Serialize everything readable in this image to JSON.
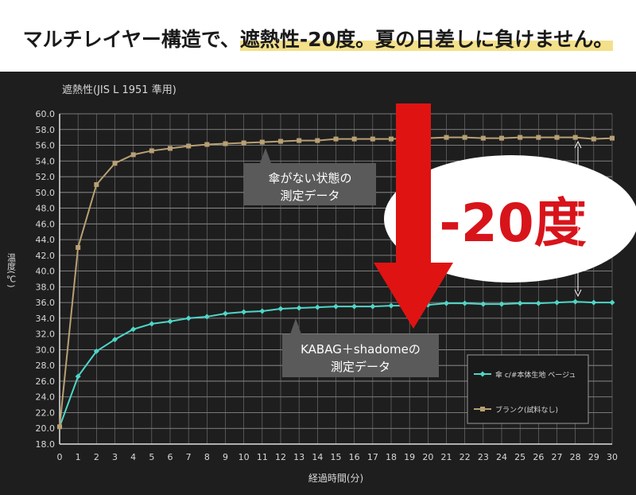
{
  "headline": {
    "part1": "マルチレイヤー構造で、",
    "part2": "遮熱性-20度。夏の日差しに負けません。"
  },
  "chart_data": {
    "type": "line",
    "title": "遮熱性(JIS L 1951 準用)",
    "xlabel": "経過時間(分)",
    "ylabel": "温度(℃)",
    "xlim": [
      0,
      30
    ],
    "ylim": [
      18,
      60
    ],
    "x": [
      0,
      1,
      2,
      3,
      4,
      5,
      6,
      7,
      8,
      9,
      10,
      11,
      12,
      13,
      14,
      15,
      16,
      17,
      18,
      19,
      20,
      21,
      22,
      23,
      24,
      25,
      26,
      27,
      28,
      29,
      30
    ],
    "x_ticks": [
      "0",
      "1",
      "2",
      "3",
      "4",
      "5",
      "6",
      "7",
      "8",
      "9",
      "10",
      "11",
      "12",
      "13",
      "14",
      "15",
      "16",
      "17",
      "18",
      "19",
      "20",
      "21",
      "22",
      "23",
      "24",
      "25",
      "26",
      "27",
      "28",
      "29",
      "30"
    ],
    "y_ticks": [
      "18.0",
      "20.0",
      "22.0",
      "24.0",
      "26.0",
      "28.0",
      "30.0",
      "32.0",
      "34.0",
      "36.0",
      "38.0",
      "40.0",
      "42.0",
      "44.0",
      "46.0",
      "48.0",
      "50.0",
      "52.0",
      "54.0",
      "56.0",
      "58.0",
      "60.0"
    ],
    "grid": true,
    "series": [
      {
        "name": "傘 c/#本体生地 ベージュ",
        "color": "#4fd6c8",
        "values": [
          20.2,
          26.6,
          29.8,
          31.3,
          32.6,
          33.3,
          33.6,
          34.0,
          34.2,
          34.6,
          34.8,
          34.9,
          35.2,
          35.3,
          35.4,
          35.5,
          35.5,
          35.5,
          35.6,
          35.6,
          35.7,
          35.9,
          35.9,
          35.8,
          35.8,
          35.9,
          35.9,
          36.0,
          36.1,
          36.0,
          36.0
        ]
      },
      {
        "name": "ブランク(試料なし)",
        "color": "#b8a074",
        "values": [
          20.2,
          43.0,
          51.0,
          53.7,
          54.8,
          55.3,
          55.6,
          55.9,
          56.1,
          56.2,
          56.3,
          56.4,
          56.5,
          56.6,
          56.6,
          56.8,
          56.8,
          56.8,
          56.8,
          56.9,
          56.9,
          57.0,
          57.0,
          56.9,
          56.9,
          57.0,
          57.0,
          57.0,
          57.0,
          56.8,
          56.9
        ]
      }
    ],
    "legend_position": "bottom-right",
    "annotations": [
      {
        "text": "傘がない状態の\n測定データ"
      },
      {
        "text": "KABAG＋shadomeの\n測定データ"
      },
      {
        "text": "-20度"
      }
    ]
  }
}
